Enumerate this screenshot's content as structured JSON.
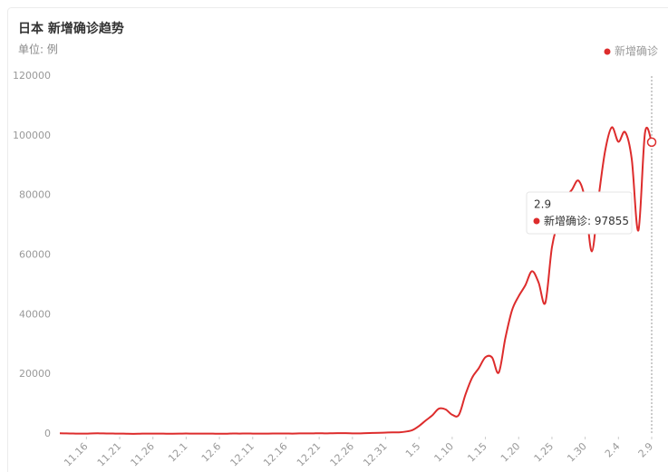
{
  "chart_data": {
    "type": "line",
    "title": "日本 新增确诊趋势",
    "subtitle": "单位: 例",
    "categories": [
      null,
      null,
      null,
      null,
      "11.16",
      null,
      null,
      null,
      null,
      "11.21",
      null,
      null,
      null,
      null,
      "11.26",
      null,
      null,
      null,
      null,
      "12.1",
      null,
      null,
      null,
      null,
      "12.6",
      null,
      null,
      null,
      null,
      "12.11",
      null,
      null,
      null,
      null,
      "12.16",
      null,
      null,
      null,
      null,
      "12.21",
      null,
      null,
      null,
      null,
      "12.26",
      null,
      null,
      null,
      null,
      "12.31",
      null,
      null,
      null,
      null,
      "1.5",
      null,
      null,
      null,
      null,
      "1.10",
      null,
      null,
      null,
      null,
      "1.15",
      null,
      null,
      null,
      null,
      "1.20",
      null,
      null,
      null,
      null,
      "1.25",
      null,
      null,
      null,
      null,
      "1.30",
      null,
      null,
      null,
      null,
      "2.4",
      null,
      null,
      null,
      null,
      "2.9"
    ],
    "series": [
      {
        "name": "新增确诊",
        "color": "#dd2c2c",
        "values": [
          224,
          180,
          150,
          108,
          125,
          193,
          207,
          147,
          133,
          120,
          77,
          50,
          80,
          124,
          117,
          127,
          94,
          84,
          105,
          144,
          99,
          112,
          125,
          97,
          60,
          78,
          154,
          122,
          149,
          127,
          102,
          118,
          136,
          160,
          154,
          132,
          176,
          190,
          185,
          246,
          177,
          238,
          256,
          268,
          207,
          175,
          282,
          323,
          375,
          461,
          540,
          534,
          782,
          1260,
          2638,
          4475,
          6214,
          8480,
          8249,
          6438,
          6376,
          13244,
          18859,
          22045,
          25742,
          25655,
          20555,
          32197,
          41485,
          46199,
          49854,
          54576,
          50742,
          43938,
          62612,
          71633,
          78930,
          81879,
          84936,
          78341,
          61197,
          79042,
          94931,
          102823,
          97996,
          101229,
          92191,
          68235,
          101063,
          97855
        ]
      }
    ],
    "ylim": [
      0,
      120000
    ],
    "yticks": [
      0,
      20000,
      40000,
      60000,
      80000,
      100000,
      120000
    ],
    "grid": false,
    "legend": "top-right",
    "tooltip_index": 89
  }
}
